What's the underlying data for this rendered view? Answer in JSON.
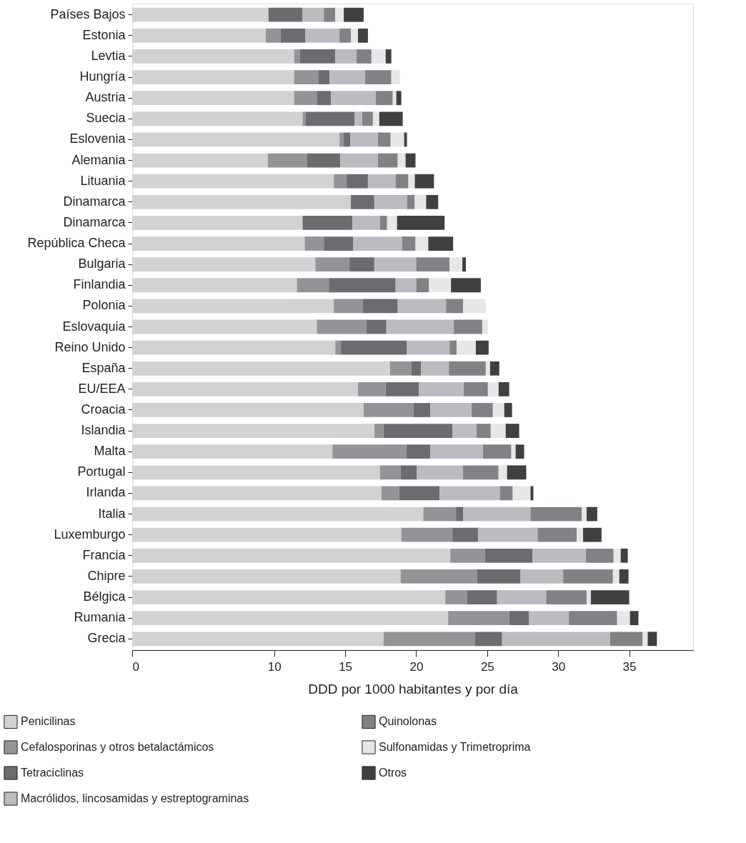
{
  "chart_data": {
    "type": "bar",
    "orientation": "horizontal",
    "stacked": true,
    "xlabel": "DDD por 1000 habitantes y por día",
    "categories": [
      "Países Bajos",
      "Estonia",
      "Levtia",
      "Hungría",
      "Austria",
      "Suecia",
      "Eslovenia",
      "Alemania",
      "Lituania",
      "Dinamarca",
      "Dinamarca",
      "República Checa",
      "Bulgaria",
      "Finlandia",
      "Polonia",
      "Eslovaquia",
      "Reino Unido",
      "España",
      "EU/EEA",
      "Croacia",
      "Islandia",
      "Malta",
      "Portugal",
      "Irlanda",
      "Italia",
      "Luxemburgo",
      "Francia",
      "Chipre",
      "Bélgica",
      "Rumania",
      "Grecia"
    ],
    "series": [
      {
        "name": "Penicilinas",
        "color": "#d1d2d4",
        "values": [
          9.6,
          9.4,
          11.4,
          11.4,
          11.4,
          12.0,
          14.6,
          9.55,
          14.2,
          15.4,
          12.0,
          12.15,
          12.9,
          11.6,
          14.2,
          13.0,
          14.3,
          18.15,
          15.9,
          16.3,
          17.05,
          14.1,
          17.45,
          17.55,
          20.5,
          18.95,
          22.4,
          18.9,
          22.05,
          22.25,
          17.7
        ]
      },
      {
        "name": "Cefalosporinas y otros betalactámicos",
        "color": "#939498",
        "values": [
          0,
          1.05,
          0.4,
          1.7,
          1.6,
          0.2,
          0.3,
          2.75,
          0.9,
          0,
          0,
          1.35,
          2.4,
          2.25,
          2.05,
          3.5,
          0.4,
          1.5,
          1.95,
          3.5,
          0.65,
          5.2,
          1.45,
          1.25,
          2.3,
          3.6,
          2.45,
          5.4,
          1.55,
          4.3,
          6.45
        ]
      },
      {
        "name": "Tetraciclinas",
        "color": "#6b6c70",
        "values": [
          2.4,
          1.75,
          2.5,
          0.8,
          1.0,
          3.45,
          0.45,
          2.35,
          1.5,
          1.65,
          3.5,
          2.05,
          1.75,
          4.7,
          2.45,
          1.4,
          4.65,
          0.7,
          2.35,
          1.2,
          4.85,
          1.7,
          1.15,
          2.85,
          0.5,
          1.8,
          3.35,
          3.05,
          2.1,
          1.4,
          1.9
        ]
      },
      {
        "name": "Macrólidos, lincosamidas y estreptograminas",
        "color": "#bbbcc0",
        "values": [
          1.5,
          2.4,
          1.5,
          2.5,
          3.15,
          0.55,
          1.95,
          2.65,
          1.95,
          2.3,
          1.95,
          3.45,
          2.95,
          1.45,
          3.4,
          4.75,
          3.0,
          1.95,
          3.15,
          2.9,
          1.7,
          3.7,
          3.25,
          4.25,
          4.75,
          4.2,
          3.75,
          3.0,
          3.45,
          2.8,
          7.6
        ]
      },
      {
        "name": "Quinolonas",
        "color": "#818286",
        "values": [
          0.8,
          0.8,
          1.05,
          1.85,
          1.2,
          0.75,
          0.9,
          1.4,
          0.9,
          0.55,
          0.5,
          0.95,
          2.35,
          0.9,
          1.2,
          2.0,
          0.5,
          2.6,
          1.7,
          1.5,
          1.0,
          2.0,
          2.5,
          0.9,
          3.6,
          2.75,
          1.95,
          3.5,
          2.85,
          3.4,
          2.3
        ]
      },
      {
        "name": "Sulfonamidas y Trimetroprima",
        "color": "#e6e7e9",
        "values": [
          0.6,
          0.5,
          1.0,
          0.6,
          0.25,
          0.45,
          0.95,
          0.55,
          0.45,
          0.8,
          0.7,
          0.9,
          0.9,
          1.55,
          1.6,
          0.4,
          1.35,
          0.3,
          0.75,
          0.8,
          1.05,
          0.3,
          0.6,
          1.25,
          0.35,
          0.45,
          0.5,
          0.45,
          0.3,
          0.9,
          0.35
        ]
      },
      {
        "name": "Otros",
        "color": "#404040",
        "values": [
          1.4,
          0.7,
          0.4,
          0,
          0.35,
          1.65,
          0.2,
          0.7,
          1.35,
          0.85,
          3.35,
          1.75,
          0.25,
          2.1,
          0,
          0,
          0.9,
          0.65,
          0.75,
          0.55,
          0.95,
          0.6,
          1.35,
          0.2,
          0.75,
          1.3,
          0.5,
          0.65,
          2.7,
          0.6,
          0.65
        ]
      }
    ],
    "xlim": [
      0,
      39.5
    ],
    "xticks": [
      0,
      10,
      15,
      20,
      25,
      30,
      35
    ],
    "grid": false,
    "legend": "bottom"
  }
}
